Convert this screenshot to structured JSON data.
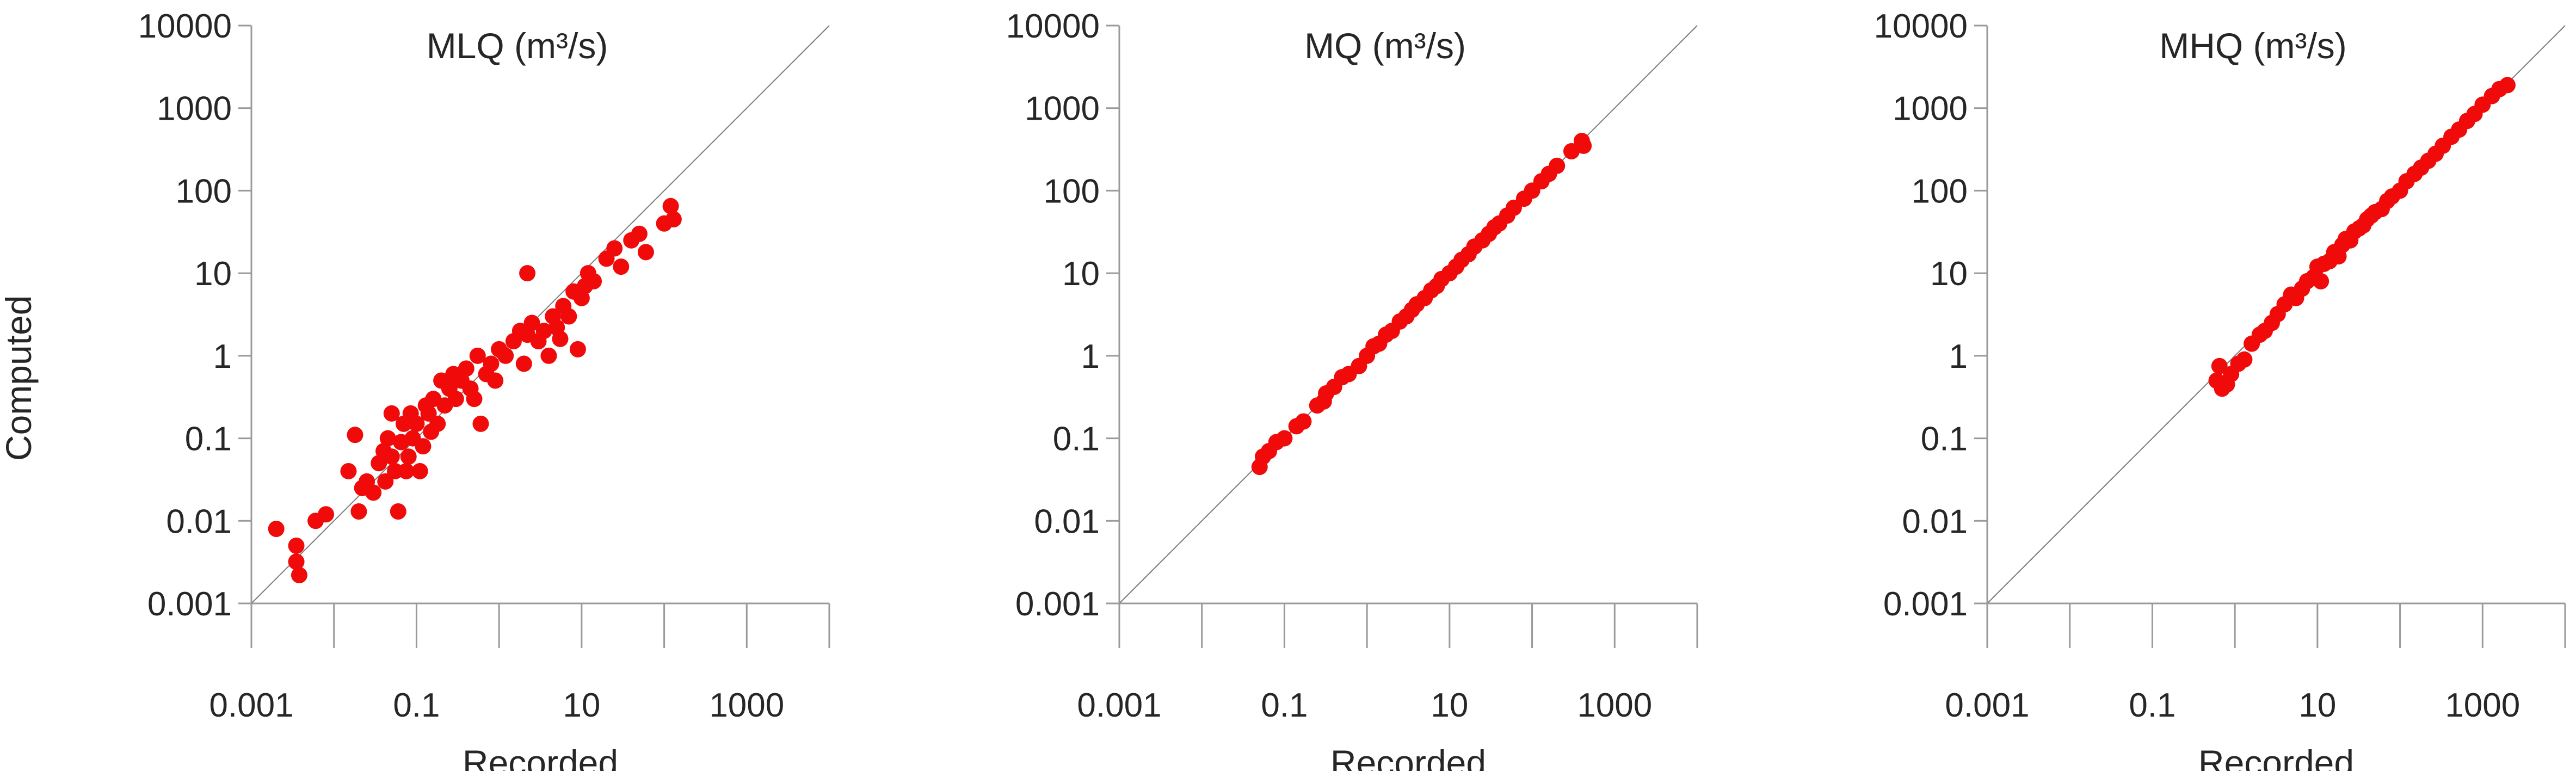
{
  "colors": {
    "points": "#f00a0a",
    "axes": "#9a9a9a",
    "diagonal": "#7a7a7a",
    "text": "#262626"
  },
  "chart_data": [
    {
      "type": "scatter",
      "title": "MLQ (m³/s)",
      "xlabel": "Recorded",
      "ylabel": "Computed",
      "xscale": "log",
      "yscale": "log",
      "xlim": [
        0.001,
        10000
      ],
      "ylim": [
        0.001,
        10000
      ],
      "x_tick_labels": [
        "0.001",
        "0.1",
        "10",
        "1000"
      ],
      "y_tick_labels": [
        "0.001",
        "0.01",
        "0.1",
        "1",
        "10",
        "100",
        "1000",
        "10000"
      ],
      "reference_line": "1:1",
      "points": [
        [
          0.002,
          0.008
        ],
        [
          0.0035,
          0.005
        ],
        [
          0.0035,
          0.0032
        ],
        [
          0.0038,
          0.0022
        ],
        [
          0.006,
          0.01
        ],
        [
          0.008,
          0.012
        ],
        [
          0.015,
          0.04
        ],
        [
          0.018,
          0.11
        ],
        [
          0.02,
          0.013
        ],
        [
          0.022,
          0.025
        ],
        [
          0.025,
          0.03
        ],
        [
          0.03,
          0.022
        ],
        [
          0.035,
          0.05
        ],
        [
          0.04,
          0.07
        ],
        [
          0.042,
          0.03
        ],
        [
          0.045,
          0.1
        ],
        [
          0.05,
          0.2
        ],
        [
          0.05,
          0.06
        ],
        [
          0.055,
          0.04
        ],
        [
          0.06,
          0.013
        ],
        [
          0.065,
          0.09
        ],
        [
          0.07,
          0.15
        ],
        [
          0.075,
          0.04
        ],
        [
          0.08,
          0.06
        ],
        [
          0.085,
          0.2
        ],
        [
          0.09,
          0.1
        ],
        [
          0.1,
          0.15
        ],
        [
          0.11,
          0.04
        ],
        [
          0.12,
          0.08
        ],
        [
          0.13,
          0.25
        ],
        [
          0.14,
          0.2
        ],
        [
          0.15,
          0.12
        ],
        [
          0.16,
          0.3
        ],
        [
          0.18,
          0.15
        ],
        [
          0.2,
          0.5
        ],
        [
          0.22,
          0.25
        ],
        [
          0.25,
          0.4
        ],
        [
          0.28,
          0.6
        ],
        [
          0.3,
          0.3
        ],
        [
          0.35,
          0.5
        ],
        [
          0.4,
          0.7
        ],
        [
          0.45,
          0.4
        ],
        [
          0.5,
          0.3
        ],
        [
          0.55,
          1.0
        ],
        [
          0.6,
          0.15
        ],
        [
          0.7,
          0.6
        ],
        [
          0.8,
          0.8
        ],
        [
          0.9,
          0.5
        ],
        [
          1.0,
          1.2
        ],
        [
          1.2,
          1.0
        ],
        [
          1.5,
          1.5
        ],
        [
          1.8,
          2.0
        ],
        [
          2.0,
          0.8
        ],
        [
          2.2,
          1.8
        ],
        [
          2.5,
          2.5
        ],
        [
          3.0,
          1.5
        ],
        [
          3.5,
          2.0
        ],
        [
          4.0,
          1.0
        ],
        [
          4.5,
          3.0
        ],
        [
          5.0,
          2.2
        ],
        [
          5.5,
          1.6
        ],
        [
          6.0,
          4.0
        ],
        [
          2.2,
          10.0
        ],
        [
          7.0,
          3.0
        ],
        [
          8.0,
          6.0
        ],
        [
          9.0,
          1.2
        ],
        [
          10.0,
          5.0
        ],
        [
          11.0,
          7.0
        ],
        [
          12.0,
          10.0
        ],
        [
          14.0,
          8.0
        ],
        [
          20.0,
          15.0
        ],
        [
          25.0,
          20.0
        ],
        [
          30.0,
          12.0
        ],
        [
          40.0,
          25.0
        ],
        [
          50.0,
          30.0
        ],
        [
          60.0,
          18.0
        ],
        [
          100.0,
          40.0
        ],
        [
          120.0,
          65.0
        ],
        [
          130.0,
          45.0
        ]
      ]
    },
    {
      "type": "scatter",
      "title": "MQ (m³/s)",
      "xlabel": "Recorded",
      "ylabel": "",
      "xscale": "log",
      "yscale": "log",
      "xlim": [
        0.001,
        10000
      ],
      "ylim": [
        0.001,
        10000
      ],
      "x_tick_labels": [
        "0.001",
        "0.1",
        "10",
        "1000"
      ],
      "y_tick_labels": [
        "0.001",
        "0.01",
        "0.1",
        "1",
        "10",
        "100",
        "1000",
        "10000"
      ],
      "reference_line": "1:1",
      "points": [
        [
          0.05,
          0.045
        ],
        [
          0.055,
          0.06
        ],
        [
          0.065,
          0.07
        ],
        [
          0.08,
          0.09
        ],
        [
          0.1,
          0.1
        ],
        [
          0.14,
          0.14
        ],
        [
          0.17,
          0.16
        ],
        [
          0.25,
          0.25
        ],
        [
          0.3,
          0.28
        ],
        [
          0.32,
          0.35
        ],
        [
          0.4,
          0.42
        ],
        [
          0.5,
          0.55
        ],
        [
          0.6,
          0.6
        ],
        [
          0.8,
          0.75
        ],
        [
          1.0,
          1.0
        ],
        [
          1.2,
          1.3
        ],
        [
          1.4,
          1.4
        ],
        [
          1.7,
          1.8
        ],
        [
          2.0,
          2.0
        ],
        [
          2.5,
          2.6
        ],
        [
          3.0,
          3.0
        ],
        [
          3.5,
          3.6
        ],
        [
          4.0,
          4.2
        ],
        [
          5.0,
          5.0
        ],
        [
          6.0,
          6.2
        ],
        [
          7.0,
          7.0
        ],
        [
          8.0,
          8.5
        ],
        [
          10.0,
          10.0
        ],
        [
          12.0,
          12.0
        ],
        [
          14.0,
          14.5
        ],
        [
          17.0,
          17.0
        ],
        [
          20.0,
          21.0
        ],
        [
          25.0,
          25.0
        ],
        [
          30.0,
          30.0
        ],
        [
          35.0,
          36.0
        ],
        [
          40.0,
          40.0
        ],
        [
          50.0,
          50.0
        ],
        [
          60.0,
          62.0
        ],
        [
          80.0,
          80.0
        ],
        [
          100.0,
          100.0
        ],
        [
          130.0,
          130.0
        ],
        [
          160.0,
          160.0
        ],
        [
          200.0,
          200.0
        ],
        [
          300.0,
          300.0
        ],
        [
          400.0,
          400.0
        ],
        [
          420.0,
          350.0
        ]
      ]
    },
    {
      "type": "scatter",
      "title": "MHQ (m³/s)",
      "xlabel": "Recorded",
      "ylabel": "",
      "xscale": "log",
      "yscale": "log",
      "xlim": [
        0.001,
        10000
      ],
      "ylim": [
        0.001,
        10000
      ],
      "x_tick_labels": [
        "0.001",
        "0.1",
        "10",
        "1000"
      ],
      "y_tick_labels": [
        "0.001",
        "0.01",
        "0.1",
        "1",
        "10",
        "100",
        "1000",
        "10000"
      ],
      "reference_line": "1:1",
      "points": [
        [
          0.6,
          0.5
        ],
        [
          0.65,
          0.75
        ],
        [
          0.7,
          0.4
        ],
        [
          0.8,
          0.45
        ],
        [
          0.9,
          0.6
        ],
        [
          1.1,
          0.8
        ],
        [
          1.3,
          0.9
        ],
        [
          1.6,
          1.4
        ],
        [
          2.0,
          1.8
        ],
        [
          2.3,
          2.0
        ],
        [
          2.8,
          2.5
        ],
        [
          3.3,
          3.2
        ],
        [
          4.0,
          4.2
        ],
        [
          4.8,
          5.5
        ],
        [
          5.5,
          5.0
        ],
        [
          6.5,
          6.5
        ],
        [
          7.5,
          8.0
        ],
        [
          9.0,
          9.0
        ],
        [
          10.0,
          12.0
        ],
        [
          11.0,
          8.0
        ],
        [
          12.0,
          13.0
        ],
        [
          14.0,
          14.0
        ],
        [
          16.0,
          18.0
        ],
        [
          18.0,
          16.0
        ],
        [
          20.0,
          22.0
        ],
        [
          22.0,
          26.0
        ],
        [
          25.0,
          25.0
        ],
        [
          28.0,
          32.0
        ],
        [
          32.0,
          35.0
        ],
        [
          36.0,
          38.0
        ],
        [
          40.0,
          45.0
        ],
        [
          45.0,
          50.0
        ],
        [
          50.0,
          55.0
        ],
        [
          60.0,
          60.0
        ],
        [
          70.0,
          75.0
        ],
        [
          80.0,
          85.0
        ],
        [
          100.0,
          100.0
        ],
        [
          120.0,
          130.0
        ],
        [
          150.0,
          160.0
        ],
        [
          180.0,
          190.0
        ],
        [
          220.0,
          230.0
        ],
        [
          270.0,
          280.0
        ],
        [
          330.0,
          350.0
        ],
        [
          420.0,
          450.0
        ],
        [
          520.0,
          550.0
        ],
        [
          650.0,
          700.0
        ],
        [
          800.0,
          850.0
        ],
        [
          1000.0,
          1100.0
        ],
        [
          1300.0,
          1400.0
        ],
        [
          1600.0,
          1700.0
        ],
        [
          2000.0,
          1900.0
        ]
      ]
    }
  ]
}
